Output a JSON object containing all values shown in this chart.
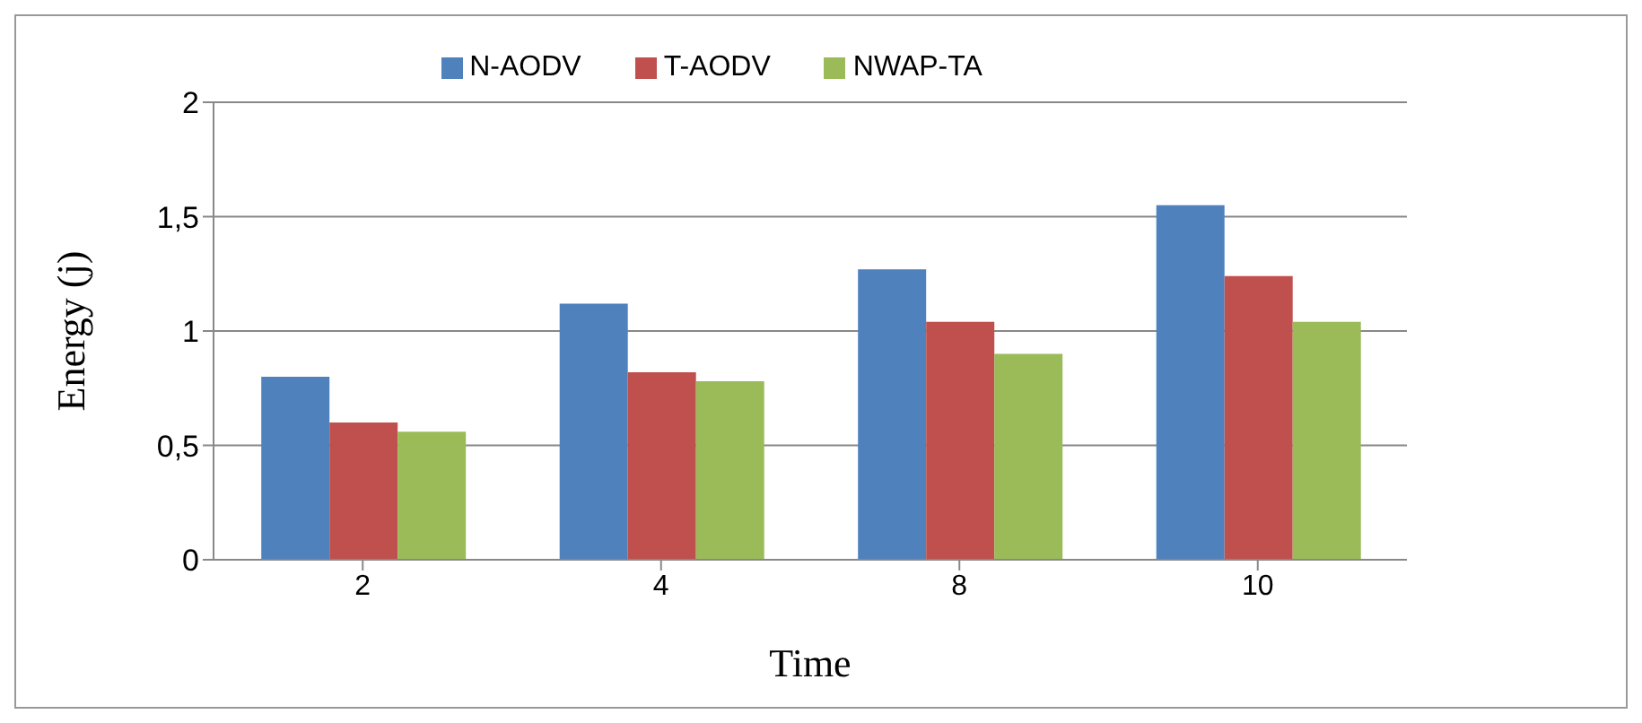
{
  "chart_data": {
    "type": "bar",
    "xlabel": "Time",
    "ylabel": "Energy (j)",
    "categories": [
      "2",
      "4",
      "8",
      "10"
    ],
    "series": [
      {
        "name": "N-AODV",
        "color": "#4f81bd",
        "values": [
          0.8,
          1.12,
          1.27,
          1.55
        ]
      },
      {
        "name": "T-AODV",
        "color": "#c0504d",
        "values": [
          0.6,
          0.82,
          1.04,
          1.24
        ]
      },
      {
        "name": "NWAP-TA",
        "color": "#9bbb59",
        "values": [
          0.56,
          0.78,
          0.9,
          1.04
        ]
      }
    ],
    "ylim": [
      0,
      2
    ],
    "yticks": [
      0,
      {
        "value": 0.5,
        "label": "0,5"
      },
      1,
      {
        "value": 1.5,
        "label": "1,5"
      },
      2
    ],
    "grid": "y",
    "legend": "top"
  }
}
